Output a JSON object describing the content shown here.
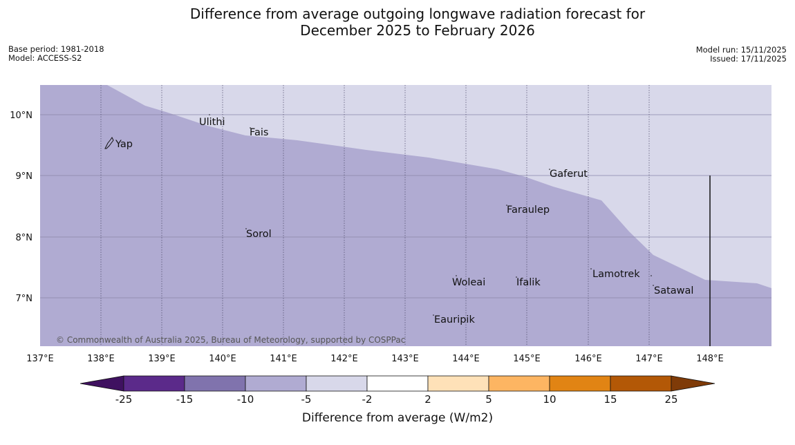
{
  "title_line1": "Difference from average outgoing longwave radiation forecast for",
  "title_line2": "December 2025 to February 2026",
  "base_period": "Base period: 1981-2018",
  "model": "Model: ACCESS-S2",
  "model_run": "Model run: 15/11/2025",
  "issued": "Issued: 17/11/2025",
  "copyright": "© Commonwealth of Australia 2025, Bureau of Meteorology, supported by COSPPac",
  "map": {
    "lon_ticks": [
      "137°E",
      "138°E",
      "139°E",
      "140°E",
      "141°E",
      "142°E",
      "143°E",
      "144°E",
      "145°E",
      "146°E",
      "147°E",
      "148°E"
    ],
    "lat_ticks": [
      "10°N",
      "9°N",
      "8°N",
      "7°N"
    ],
    "places": [
      "Yap",
      "Ulithi",
      "Fais",
      "Gaferut",
      "Faraulep",
      "Sorol",
      "Lamotrek",
      "Woleai",
      "Ifalik",
      "Satawal",
      "Eauripik"
    ],
    "colors": {
      "band_-10_-5": "#b0abd2",
      "band_-5_-2": "#d8d8ea"
    }
  },
  "colorbar": {
    "label": "Difference from average (W/m2)",
    "ticks": [
      "-25",
      "-15",
      "-10",
      "-5",
      "-2",
      "2",
      "5",
      "10",
      "15",
      "25"
    ],
    "colors": [
      "#3f1160",
      "#5b2a8a",
      "#8073ad",
      "#b0abd2",
      "#d8d8ea",
      "#ffffff",
      "#fee1b8",
      "#fdb562",
      "#e18414",
      "#b35806",
      "#7f3b08"
    ]
  }
}
